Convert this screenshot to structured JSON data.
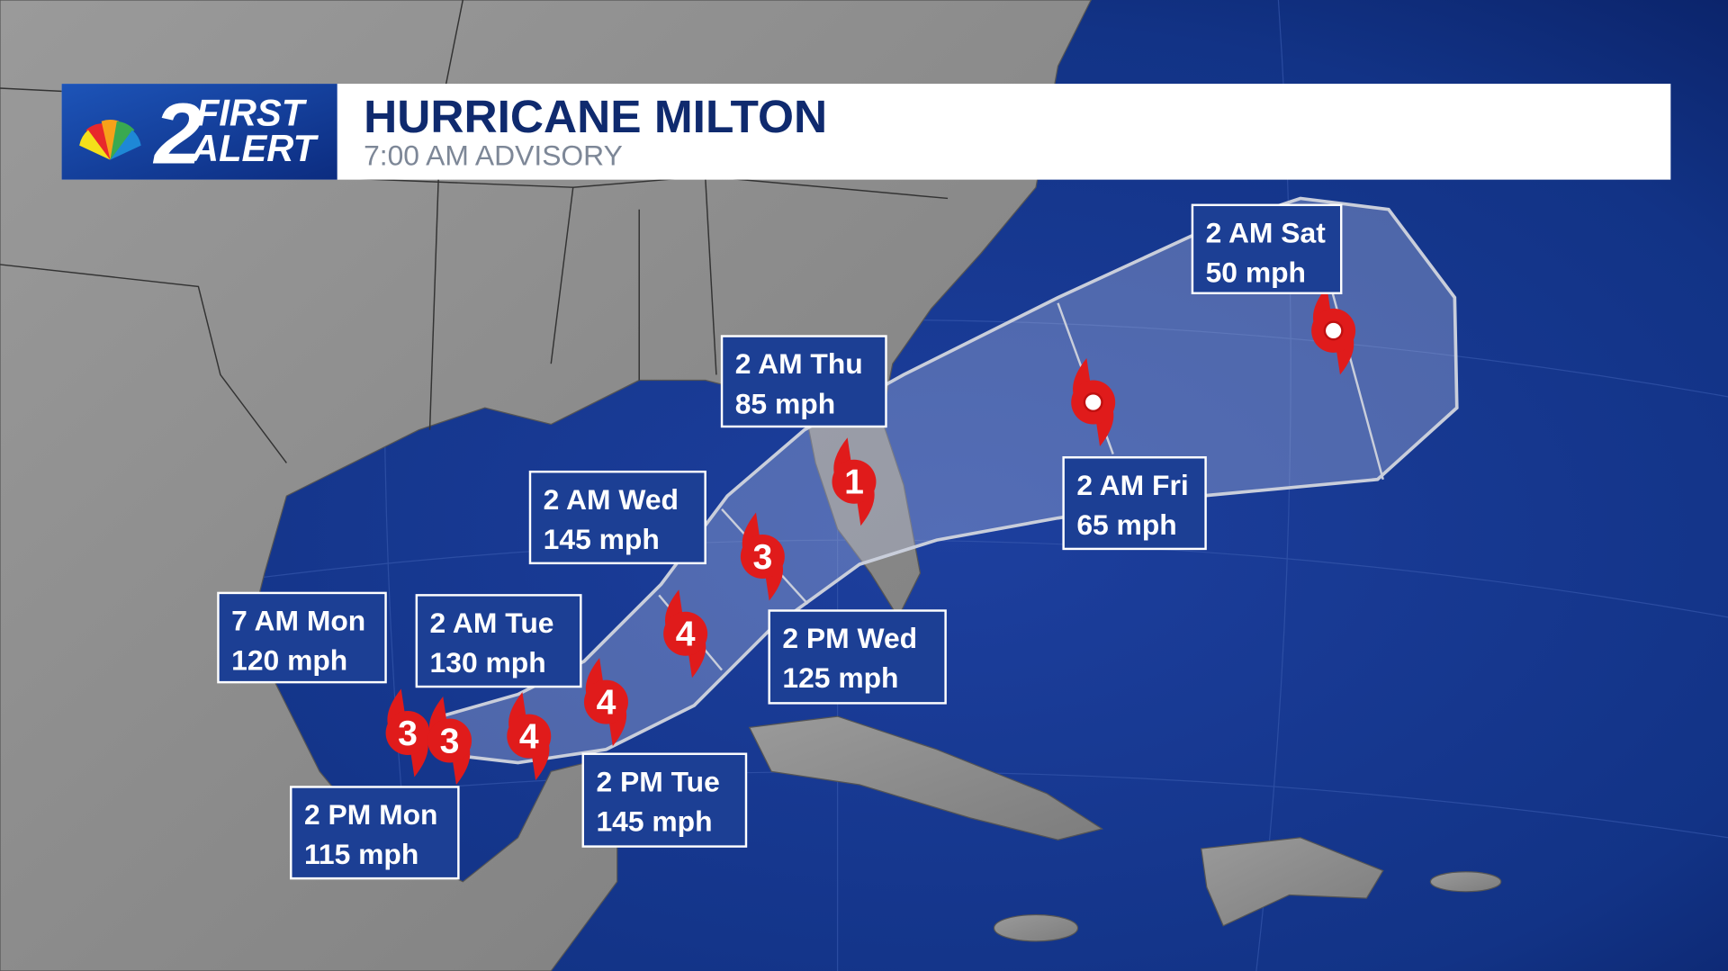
{
  "header": {
    "logo": {
      "number": "2",
      "line1": "FIRST",
      "line2": "ALERT"
    },
    "title": "HURRICANE MILTON",
    "subtitle": "7:00 AM ADVISORY"
  },
  "forecast_points": [
    {
      "time": "7 AM Mon",
      "wind": "120 mph",
      "category": "3"
    },
    {
      "time": "2 PM Mon",
      "wind": "115 mph",
      "category": "3"
    },
    {
      "time": "2 AM Tue",
      "wind": "130 mph",
      "category": "4"
    },
    {
      "time": "2 PM Tue",
      "wind": "145 mph",
      "category": "4"
    },
    {
      "time": "2 AM Wed",
      "wind": "145 mph",
      "category": "4"
    },
    {
      "time": "2 PM Wed",
      "wind": "125 mph",
      "category": "3"
    },
    {
      "time": "2 AM Thu",
      "wind": "85 mph",
      "category": "1"
    },
    {
      "time": "2 AM Fri",
      "wind": "65 mph"
    },
    {
      "time": "2 AM Sat",
      "wind": "50 mph"
    }
  ]
}
